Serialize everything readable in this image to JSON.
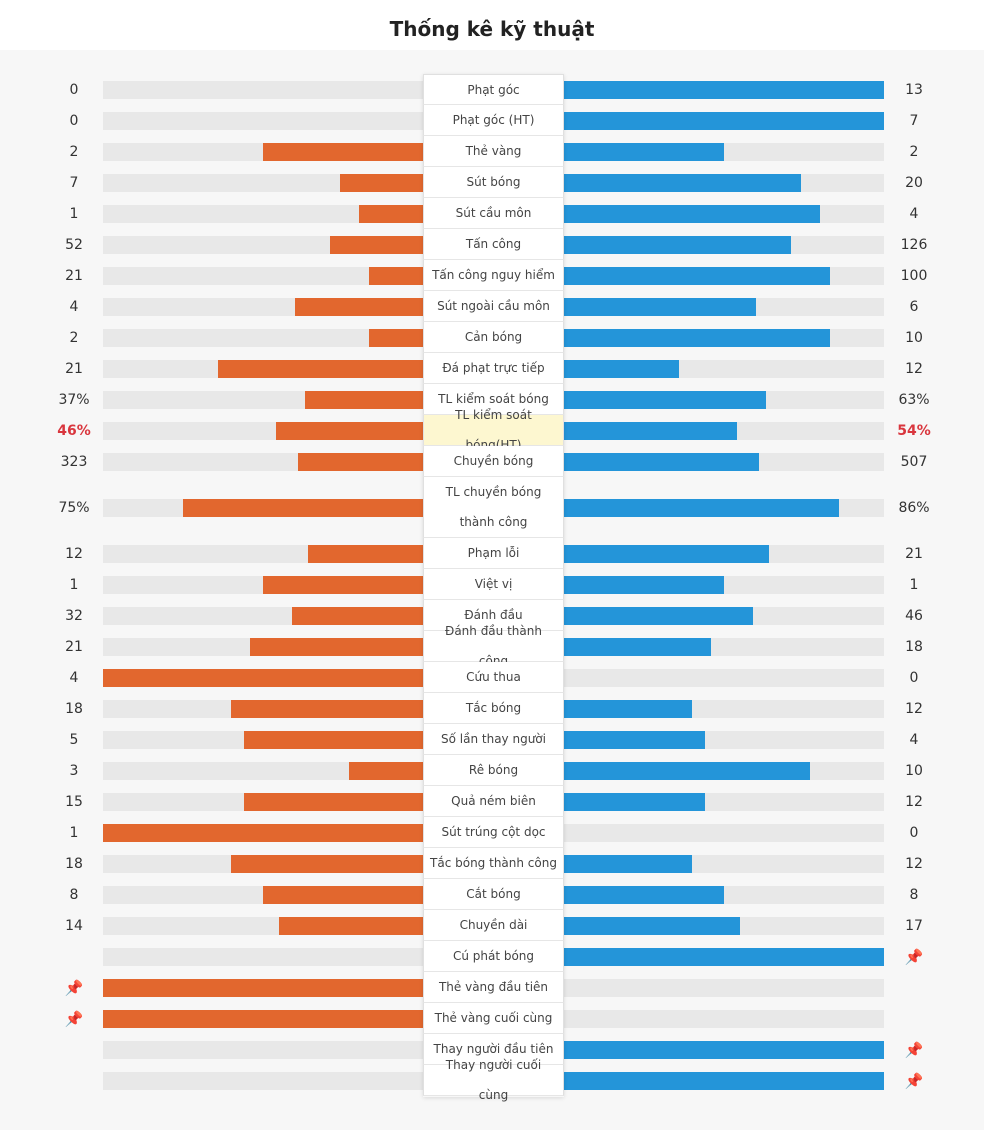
{
  "title": "Thống kê kỹ thuật",
  "colors": {
    "home": "#e2672e",
    "away": "#2495d9",
    "highlight": "#d9363e",
    "pin": "#f0b400"
  },
  "pin_icon": "pushpin-icon",
  "stats": [
    {
      "label": "Phạt góc",
      "home": "0",
      "away": "13",
      "home_frac": 0.0,
      "away_frac": 1.0
    },
    {
      "label": "Phạt góc (HT)",
      "home": "0",
      "away": "7",
      "home_frac": 0.0,
      "away_frac": 1.0
    },
    {
      "label": "Thẻ vàng",
      "home": "2",
      "away": "2",
      "home_frac": 0.5,
      "away_frac": 0.5
    },
    {
      "label": "Sút bóng",
      "home": "7",
      "away": "20",
      "home_frac": 0.26,
      "away_frac": 0.74
    },
    {
      "label": "Sút cầu môn",
      "home": "1",
      "away": "4",
      "home_frac": 0.2,
      "away_frac": 0.8
    },
    {
      "label": "Tấn công",
      "home": "52",
      "away": "126",
      "home_frac": 0.29,
      "away_frac": 0.71
    },
    {
      "label": "Tấn công nguy hiểm",
      "home": "21",
      "away": "100",
      "home_frac": 0.17,
      "away_frac": 0.83
    },
    {
      "label": "Sút ngoài cầu môn",
      "home": "4",
      "away": "6",
      "home_frac": 0.4,
      "away_frac": 0.6
    },
    {
      "label": "Cản bóng",
      "home": "2",
      "away": "10",
      "home_frac": 0.17,
      "away_frac": 0.83
    },
    {
      "label": "Đá phạt trực tiếp",
      "home": "21",
      "away": "12",
      "home_frac": 0.64,
      "away_frac": 0.36
    },
    {
      "label": "TL kiểm soát bóng",
      "home": "37%",
      "away": "63%",
      "home_frac": 0.37,
      "away_frac": 0.63
    },
    {
      "label": "TL kiểm soát bóng(HT)",
      "home": "46%",
      "away": "54%",
      "home_frac": 0.46,
      "away_frac": 0.54,
      "highlight": true
    },
    {
      "label": "Chuyền bóng",
      "home": "323",
      "away": "507",
      "home_frac": 0.39,
      "away_frac": 0.61
    },
    {
      "label": "TL chuyền bóng thành công",
      "home": "75%",
      "away": "86%",
      "home_frac": 0.75,
      "away_frac": 0.86,
      "tall": true
    },
    {
      "label": "Phạm lỗi",
      "home": "12",
      "away": "21",
      "home_frac": 0.36,
      "away_frac": 0.64
    },
    {
      "label": "Việt vị",
      "home": "1",
      "away": "1",
      "home_frac": 0.5,
      "away_frac": 0.5
    },
    {
      "label": "Đánh đầu",
      "home": "32",
      "away": "46",
      "home_frac": 0.41,
      "away_frac": 0.59
    },
    {
      "label": "Đánh đầu thành công",
      "home": "21",
      "away": "18",
      "home_frac": 0.54,
      "away_frac": 0.46
    },
    {
      "label": "Cứu thua",
      "home": "4",
      "away": "0",
      "home_frac": 1.0,
      "away_frac": 0.0
    },
    {
      "label": "Tắc bóng",
      "home": "18",
      "away": "12",
      "home_frac": 0.6,
      "away_frac": 0.4
    },
    {
      "label": "Số lần thay người",
      "home": "5",
      "away": "4",
      "home_frac": 0.56,
      "away_frac": 0.44
    },
    {
      "label": "Rê bóng",
      "home": "3",
      "away": "10",
      "home_frac": 0.23,
      "away_frac": 0.77
    },
    {
      "label": "Quả ném biên",
      "home": "15",
      "away": "12",
      "home_frac": 0.56,
      "away_frac": 0.44
    },
    {
      "label": "Sút trúng cột dọc",
      "home": "1",
      "away": "0",
      "home_frac": 1.0,
      "away_frac": 0.0
    },
    {
      "label": "Tắc bóng thành công",
      "home": "18",
      "away": "12",
      "home_frac": 0.6,
      "away_frac": 0.4
    },
    {
      "label": "Cắt bóng",
      "home": "8",
      "away": "8",
      "home_frac": 0.5,
      "away_frac": 0.5
    },
    {
      "label": "Chuyền dài",
      "home": "14",
      "away": "17",
      "home_frac": 0.45,
      "away_frac": 0.55
    },
    {
      "label": "Cú phát bóng",
      "home": "",
      "away": "",
      "home_frac": 0.0,
      "away_frac": 1.0,
      "home_pin": false,
      "away_pin": true
    },
    {
      "label": "Thẻ vàng đầu tiên",
      "home": "",
      "away": "",
      "home_frac": 1.0,
      "away_frac": 0.0,
      "home_pin": true,
      "away_pin": false
    },
    {
      "label": "Thẻ vàng cuối cùng",
      "home": "",
      "away": "",
      "home_frac": 1.0,
      "away_frac": 0.0,
      "home_pin": true,
      "away_pin": false
    },
    {
      "label": "Thay người đầu tiên",
      "home": "",
      "away": "",
      "home_frac": 0.0,
      "away_frac": 1.0,
      "home_pin": false,
      "away_pin": true
    },
    {
      "label": "Thay người cuối cùng",
      "home": "",
      "away": "",
      "home_frac": 0.0,
      "away_frac": 1.0,
      "home_pin": false,
      "away_pin": true
    }
  ]
}
